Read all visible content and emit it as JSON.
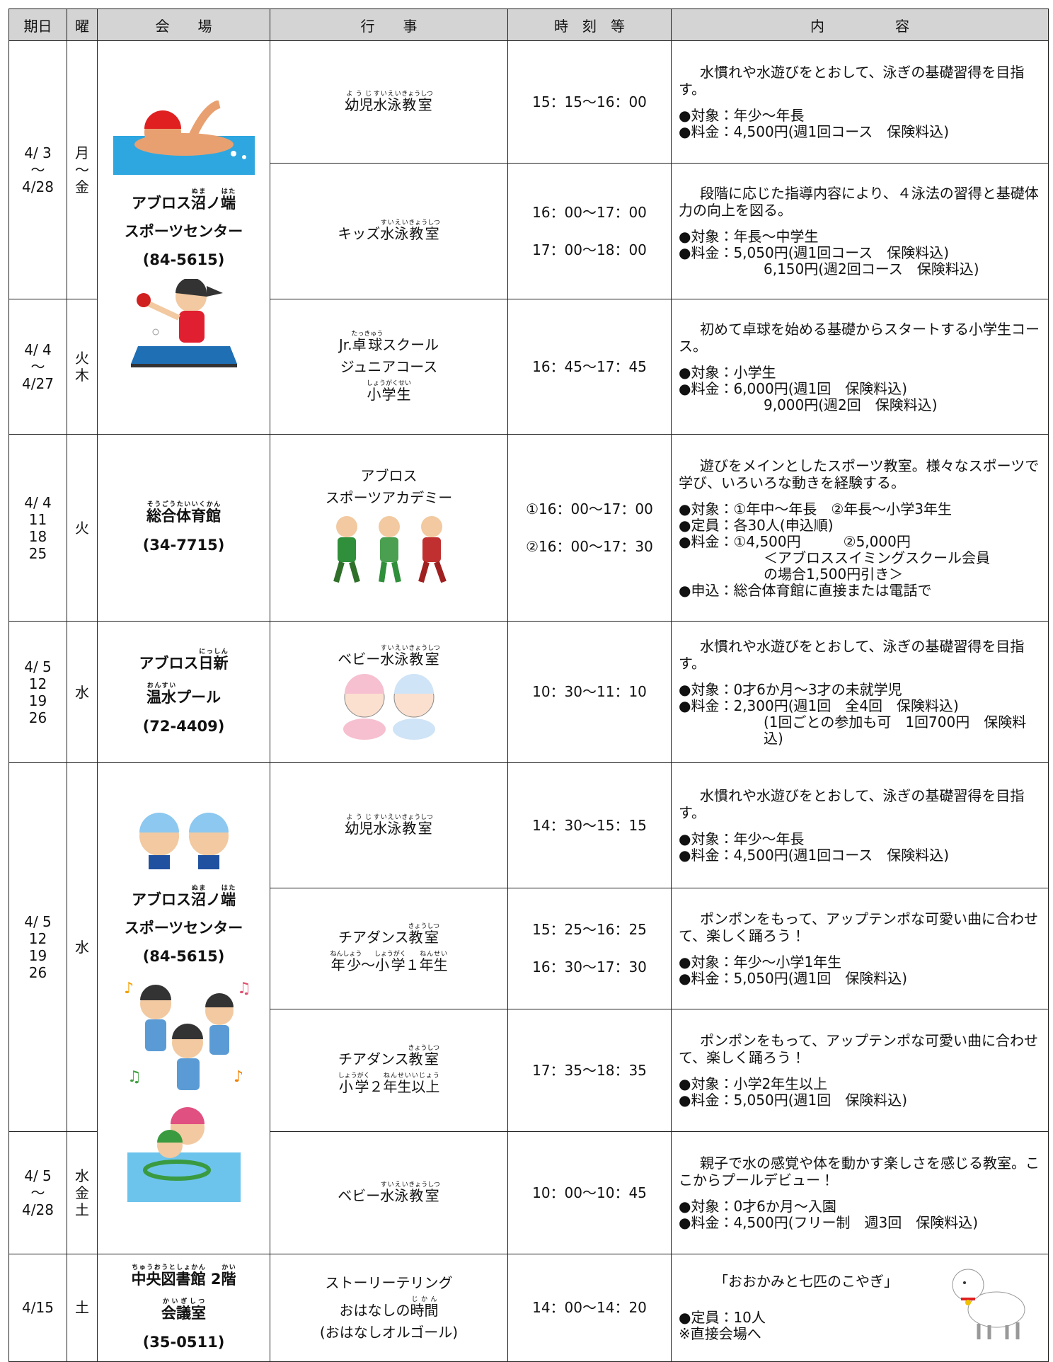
{
  "header": [
    "期日",
    "曜",
    "会　　場",
    "行　　事",
    "時　刻　等",
    "内　　　　　容"
  ],
  "rows": [
    {
      "date": [
        "4/ 3",
        "～",
        "4/28"
      ],
      "day": [
        "月",
        "～",
        "金"
      ],
      "venue": [
        [
          {
            "t": "アブロス"
          },
          {
            "t": "沼",
            "r": "ぬま"
          },
          {
            "t": "ノ"
          },
          {
            "t": "端",
            "r": "はた"
          }
        ],
        [
          {
            "t": "スポーツセンター"
          }
        ],
        [
          {
            "t": "(84-5615)"
          }
        ]
      ],
      "program": [
        [
          {
            "t": "幼児",
            "r": "ようじ"
          },
          {
            "t": "水泳",
            "r": "すいえい"
          },
          {
            "t": "教室",
            "r": "きょうしつ"
          }
        ]
      ],
      "time": [
        "15：15～16：00"
      ],
      "content": {
        "intro": "水慣れや水遊びをとおして、泳ぎの基礎習得を目指す。",
        "items": [
          "●対象：年少～年長",
          "●料金：4,500円(週1回コース　保険料込)"
        ]
      }
    },
    {
      "program": [
        [
          {
            "t": "キッズ"
          },
          {
            "t": "水泳",
            "r": "すいえい"
          },
          {
            "t": "教室",
            "r": "きょうしつ"
          }
        ]
      ],
      "time": [
        "16：00～17：00",
        "17：00～18：00"
      ],
      "content": {
        "intro": "段階に応じた指導内容により、４泳法の習得と基礎体力の向上を図る。",
        "items": [
          "●対象：年長～中学生",
          "●料金：5,050円(週1回コース　保険料込)",
          "6,150円(週2回コース　保険料込)"
        ]
      }
    },
    {
      "date": [
        "4/ 4",
        "～",
        "4/27"
      ],
      "day": [
        "火",
        "木"
      ],
      "program": [
        [
          {
            "t": "Jr."
          },
          {
            "t": "卓球",
            "r": "たっきゅう"
          },
          {
            "t": "スクール"
          }
        ],
        [
          {
            "t": "ジュニアコース"
          }
        ],
        [
          {
            "t": "小学生",
            "r": "しょうがくせい"
          }
        ]
      ],
      "time": [
        "16：45～17：45"
      ],
      "content": {
        "intro": "初めて卓球を始める基礎からスタートする小学生コース。",
        "items": [
          "●対象：小学生",
          "●料金：6,000円(週1回　保険料込)",
          "9,000円(週2回　保険料込)"
        ]
      }
    },
    {
      "date": [
        "4/ 4",
        "11",
        "18",
        "25"
      ],
      "day": [
        "火"
      ],
      "venue": [
        [
          {
            "t": "総合",
            "r": "そうごう"
          },
          {
            "t": "体育館",
            "r": "たいいくかん"
          }
        ],
        [
          {
            "t": "(34-7715)"
          }
        ]
      ],
      "program": [
        [
          {
            "t": "アブロス"
          }
        ],
        [
          {
            "t": "スポーツアカデミー"
          }
        ]
      ],
      "time": [
        "①16：00～17：00",
        "②16：00～17：30"
      ],
      "content": {
        "intro": "遊びをメインとしたスポーツ教室。様々なスポーツで学び、いろいろな動きを経験する。",
        "items": [
          "●対象：①年中～年長　②年長～小学3年生",
          "●定員：各30人(申込順)",
          "●料金：①4,500円　　　②5,000円",
          "＜アブロススイミングスクール会員",
          "の場合1,500円引き＞",
          "●申込：総合体育館に直接または電話で"
        ]
      }
    },
    {
      "date": [
        "4/ 5",
        "12",
        "19",
        "26"
      ],
      "day": [
        "水"
      ],
      "venue": [
        [
          {
            "t": "アブロス"
          },
          {
            "t": "日新",
            "r": "にっしん"
          }
        ],
        [
          {
            "t": "温水",
            "r": "おんすい"
          },
          {
            "t": "プール"
          }
        ],
        [
          {
            "t": "(72-4409)"
          }
        ]
      ],
      "program": [
        [
          {
            "t": "ベビー"
          },
          {
            "t": "水泳",
            "r": "すいえい"
          },
          {
            "t": "教室",
            "r": "きょうしつ"
          }
        ]
      ],
      "time": [
        "10：30～11：10"
      ],
      "content": {
        "intro": "水慣れや水遊びをとおして、泳ぎの基礎習得を目指す。",
        "items": [
          "●対象：0才6か月～3才の未就学児",
          "●料金：2,300円(週1回　全4回　保険料込)",
          "(1回ごとの参加も可　1回700円　保険料込)"
        ]
      }
    },
    {
      "date": [
        "4/ 5",
        "12",
        "19",
        "26"
      ],
      "day": [
        "水"
      ],
      "venue": [
        [
          {
            "t": "アブロス"
          },
          {
            "t": "沼",
            "r": "ぬま"
          },
          {
            "t": "ノ"
          },
          {
            "t": "端",
            "r": "はた"
          }
        ],
        [
          {
            "t": "スポーツセンター"
          }
        ],
        [
          {
            "t": "(84-5615)"
          }
        ]
      ],
      "program": [
        [
          {
            "t": "幼児",
            "r": "ようじ"
          },
          {
            "t": "水泳",
            "r": "すいえい"
          },
          {
            "t": "教室",
            "r": "きょうしつ"
          }
        ]
      ],
      "time": [
        "14：30～15：15"
      ],
      "content": {
        "intro": "水慣れや水遊びをとおして、泳ぎの基礎習得を目指す。",
        "items": [
          "●対象：年少～年長",
          "●料金：4,500円(週1回コース　保険料込)"
        ]
      }
    },
    {
      "program": [
        [
          {
            "t": "チアダンス"
          },
          {
            "t": "教室",
            "r": "きょうしつ"
          }
        ],
        [
          {
            "t": "年少",
            "r": "ねんしょう"
          },
          {
            "t": "～"
          },
          {
            "t": "小学",
            "r": "しょうがく"
          },
          {
            "t": "１"
          },
          {
            "t": "年生",
            "r": "ねんせい"
          }
        ]
      ],
      "time": [
        "15：25～16：25",
        "16：30～17：30"
      ],
      "content": {
        "intro": "ポンポンをもって、アップテンポな可愛い曲に合わせて、楽しく踊ろう！",
        "items": [
          "●対象：年少～小学1年生",
          "●料金：5,050円(週1回　保険料込)"
        ]
      }
    },
    {
      "program": [
        [
          {
            "t": "チアダンス"
          },
          {
            "t": "教室",
            "r": "きょうしつ"
          }
        ],
        [
          {
            "t": "小学",
            "r": "しょうがく"
          },
          {
            "t": "２"
          },
          {
            "t": "年生以上",
            "r": "ねんせいいじょう"
          }
        ]
      ],
      "time": [
        "17：35～18：35"
      ],
      "content": {
        "intro": "ポンポンをもって、アップテンポな可愛い曲に合わせて、楽しく踊ろう！",
        "items": [
          "●対象：小学2年生以上",
          "●料金：5,050円(週1回　保険料込)"
        ]
      }
    },
    {
      "date": [
        "4/ 5",
        "～",
        "4/28"
      ],
      "day": [
        "水",
        "金",
        "土"
      ],
      "program": [
        [
          {
            "t": "ベビー"
          },
          {
            "t": "水泳",
            "r": "すいえい"
          },
          {
            "t": "教室",
            "r": "きょうしつ"
          }
        ]
      ],
      "time": [
        "10：00～10：45"
      ],
      "content": {
        "intro": "親子で水の感覚や体を動かす楽しさを感じる教室。ここからプールデビュー！",
        "items": [
          "●対象：0才6か月～入園",
          "●料金：4,500円(フリー制　週3回　保険料込)"
        ]
      }
    },
    {
      "date": [
        "4/15"
      ],
      "day": [
        "土"
      ],
      "venue": [
        [
          {
            "t": "中央図書館",
            "r": "ちゅうおうとしょかん"
          },
          {
            "t": " 2"
          },
          {
            "t": "階",
            "r": "かい"
          }
        ],
        [
          {
            "t": "会議室",
            "r": "かいぎしつ"
          }
        ],
        [
          {
            "t": "(35-0511)"
          }
        ]
      ],
      "program": [
        [
          {
            "t": "ストーリーテリング"
          }
        ],
        [
          {
            "t": "おはなしの"
          },
          {
            "t": "時間",
            "r": "じかん"
          }
        ],
        [
          {
            "t": "(おはなしオルゴール)"
          }
        ]
      ],
      "time": [
        "14：00～14：20"
      ],
      "content": {
        "intro": "「おおかみと七匹のこやぎ」",
        "items": [
          "●定員：10人",
          "※直接会場へ"
        ]
      }
    }
  ]
}
